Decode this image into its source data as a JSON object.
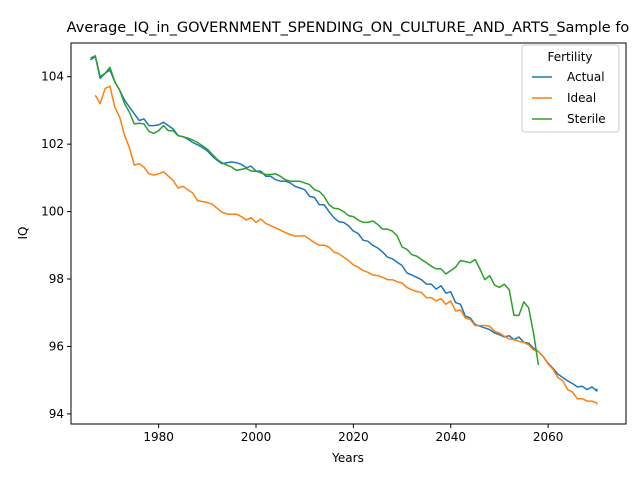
{
  "chart_data": {
    "type": "line",
    "title": "Average_IQ_in_GOVERNMENT_SPENDING_ON_CULTURE_AND_ARTS_Sample fo",
    "xlabel": "Years",
    "ylabel": "IQ",
    "xlim": [
      1962,
      2076
    ],
    "ylim": [
      93.7,
      105.0
    ],
    "xticks": [
      1980,
      2000,
      2020,
      2040,
      2060
    ],
    "yticks": [
      94,
      96,
      98,
      100,
      102,
      104
    ],
    "grid": false,
    "legend": {
      "title": "Fertility",
      "placement": "top-right"
    },
    "series": [
      {
        "name": "Actual",
        "color": "#1f77b4",
        "x": [
          1966,
          1967,
          1968,
          1969,
          1970,
          1971,
          1972,
          1973,
          1974,
          1975,
          1976,
          1977,
          1978,
          1979,
          1980,
          1981,
          1982,
          1983,
          1984,
          1985,
          1986,
          1987,
          1988,
          1989,
          1990,
          1991,
          1992,
          1993,
          1994,
          1995,
          1996,
          1997,
          1998,
          1999,
          2000,
          2001,
          2002,
          2003,
          2004,
          2005,
          2006,
          2007,
          2008,
          2009,
          2010,
          2011,
          2012,
          2013,
          2014,
          2015,
          2016,
          2017,
          2018,
          2019,
          2020,
          2021,
          2022,
          2023,
          2024,
          2025,
          2026,
          2027,
          2028,
          2029,
          2030,
          2031,
          2032,
          2033,
          2034,
          2035,
          2036,
          2037,
          2038,
          2039,
          2040,
          2041,
          2042,
          2043,
          2044,
          2045,
          2046,
          2047,
          2048,
          2049,
          2050,
          2051,
          2052,
          2053,
          2054,
          2055,
          2056,
          2057,
          2058,
          2059,
          2060,
          2061,
          2062,
          2063,
          2064,
          2065,
          2066,
          2067,
          2068,
          2069,
          2070
        ],
        "y": [
          104.5,
          104.6,
          103.95,
          104.1,
          104.2,
          103.85,
          103.6,
          103.3,
          103.1,
          102.9,
          102.7,
          102.75,
          102.55,
          102.55,
          102.57,
          102.65,
          102.55,
          102.45,
          102.25,
          102.22,
          102.15,
          102.05,
          101.98,
          101.9,
          101.8,
          101.65,
          101.52,
          101.42,
          101.45,
          101.47,
          101.45,
          101.4,
          101.3,
          101.35,
          101.2,
          101.2,
          101.05,
          101.05,
          100.95,
          100.9,
          100.9,
          100.85,
          100.75,
          100.7,
          100.65,
          100.45,
          100.42,
          100.2,
          100.2,
          100.0,
          99.82,
          99.7,
          99.68,
          99.58,
          99.42,
          99.35,
          99.15,
          99.12,
          99.0,
          98.92,
          98.8,
          98.65,
          98.6,
          98.5,
          98.4,
          98.18,
          98.12,
          98.05,
          97.98,
          97.85,
          97.85,
          97.7,
          97.8,
          97.58,
          97.62,
          97.3,
          97.25,
          96.9,
          96.85,
          96.65,
          96.6,
          96.55,
          96.5,
          96.4,
          96.35,
          96.28,
          96.32,
          96.2,
          96.28,
          96.12,
          96.1,
          95.95,
          95.85,
          95.7,
          95.5,
          95.35,
          95.18,
          95.08,
          94.98,
          94.9,
          94.8,
          94.82,
          94.72,
          94.8,
          94.68
        ],
        "x_end": 2070,
        "y_end": 94.75
      },
      {
        "name": "Ideal",
        "color": "#ff7f0e",
        "x": [
          1967,
          1968,
          1969,
          1970,
          1971,
          1972,
          1973,
          1974,
          1975,
          1976,
          1977,
          1978,
          1979,
          1980,
          1981,
          1982,
          1983,
          1984,
          1985,
          1986,
          1987,
          1988,
          1989,
          1990,
          1991,
          1992,
          1993,
          1994,
          1995,
          1996,
          1997,
          1998,
          1999,
          2000,
          2001,
          2002,
          2003,
          2004,
          2005,
          2006,
          2007,
          2008,
          2009,
          2010,
          2011,
          2012,
          2013,
          2014,
          2015,
          2016,
          2017,
          2018,
          2019,
          2020,
          2021,
          2022,
          2023,
          2024,
          2025,
          2026,
          2027,
          2028,
          2029,
          2030,
          2031,
          2032,
          2033,
          2034,
          2035,
          2036,
          2037,
          2038,
          2039,
          2040,
          2041,
          2042,
          2043,
          2044,
          2045,
          2046,
          2047,
          2048,
          2049,
          2050,
          2051,
          2052,
          2053,
          2054,
          2055,
          2056,
          2057,
          2058,
          2059,
          2060,
          2061,
          2062,
          2063,
          2064,
          2065,
          2066,
          2067,
          2068,
          2069,
          2070
        ],
        "y": [
          103.45,
          103.2,
          103.65,
          103.72,
          103.1,
          102.8,
          102.25,
          101.9,
          101.38,
          101.42,
          101.32,
          101.12,
          101.08,
          101.12,
          101.18,
          101.05,
          100.92,
          100.7,
          100.75,
          100.65,
          100.55,
          100.32,
          100.3,
          100.27,
          100.22,
          100.1,
          99.98,
          99.93,
          99.92,
          99.92,
          99.85,
          99.75,
          99.82,
          99.68,
          99.78,
          99.65,
          99.58,
          99.52,
          99.45,
          99.38,
          99.32,
          99.27,
          99.28,
          99.28,
          99.18,
          99.08,
          99.0,
          99.0,
          98.95,
          98.8,
          98.75,
          98.65,
          98.55,
          98.42,
          98.35,
          98.25,
          98.2,
          98.12,
          98.1,
          98.05,
          97.98,
          97.98,
          97.92,
          97.88,
          97.75,
          97.68,
          97.63,
          97.6,
          97.45,
          97.45,
          97.35,
          97.42,
          97.25,
          97.35,
          97.05,
          97.08,
          96.85,
          96.8,
          96.62,
          96.62,
          96.62,
          96.6,
          96.45,
          96.4,
          96.3,
          96.22,
          96.2,
          96.15,
          96.12,
          96.05,
          95.9,
          95.85,
          95.7,
          95.48,
          95.32,
          95.08,
          94.98,
          94.72,
          94.65,
          94.45,
          94.45,
          94.38,
          94.38,
          94.32
        ],
        "x_end": 2070,
        "y_end": 94.28
      },
      {
        "name": "Sterile",
        "color": "#2ca02c",
        "x": [
          1966,
          1967,
          1968,
          1969,
          1970,
          1971,
          1972,
          1973,
          1974,
          1975,
          1976,
          1977,
          1978,
          1979,
          1980,
          1981,
          1982,
          1983,
          1984,
          1985,
          1986,
          1987,
          1988,
          1989,
          1990,
          1991,
          1992,
          1993,
          1994,
          1995,
          1996,
          1997,
          1998,
          1999,
          2000,
          2001,
          2002,
          2003,
          2004,
          2005,
          2006,
          2007,
          2008,
          2009,
          2010,
          2011,
          2012,
          2013,
          2014,
          2015,
          2016,
          2017,
          2018,
          2019,
          2020,
          2021,
          2022,
          2023,
          2024,
          2025,
          2026,
          2027,
          2028,
          2029,
          2030,
          2031,
          2032,
          2033,
          2034,
          2035,
          2036,
          2037,
          2038,
          2039,
          2040,
          2041,
          2042,
          2043,
          2044,
          2045,
          2046,
          2047,
          2048,
          2049,
          2050,
          2051,
          2052,
          2053,
          2054,
          2055,
          2056,
          2057,
          2058
        ],
        "y": [
          104.55,
          104.62,
          104.0,
          104.1,
          104.28,
          103.85,
          103.6,
          103.2,
          102.95,
          102.6,
          102.62,
          102.6,
          102.38,
          102.32,
          102.4,
          102.55,
          102.4,
          102.4,
          102.25,
          102.22,
          102.18,
          102.12,
          102.05,
          101.95,
          101.85,
          101.7,
          101.55,
          101.45,
          101.38,
          101.32,
          101.22,
          101.25,
          101.28,
          101.2,
          101.2,
          101.15,
          101.1,
          101.1,
          101.12,
          101.05,
          100.95,
          100.9,
          100.9,
          100.9,
          100.85,
          100.8,
          100.65,
          100.6,
          100.45,
          100.2,
          100.1,
          100.08,
          100.0,
          99.88,
          99.85,
          99.75,
          99.68,
          99.68,
          99.72,
          99.62,
          99.48,
          99.48,
          99.42,
          99.28,
          98.95,
          98.88,
          98.72,
          98.68,
          98.58,
          98.48,
          98.38,
          98.3,
          98.3,
          98.15,
          98.25,
          98.35,
          98.55,
          98.52,
          98.48,
          98.58,
          98.3,
          97.98,
          98.1,
          97.82,
          97.75,
          97.85,
          97.68,
          96.92,
          96.92,
          97.32,
          97.15,
          96.4,
          95.45
        ],
        "x_end": 2058,
        "y_end": 95.45
      }
    ]
  }
}
